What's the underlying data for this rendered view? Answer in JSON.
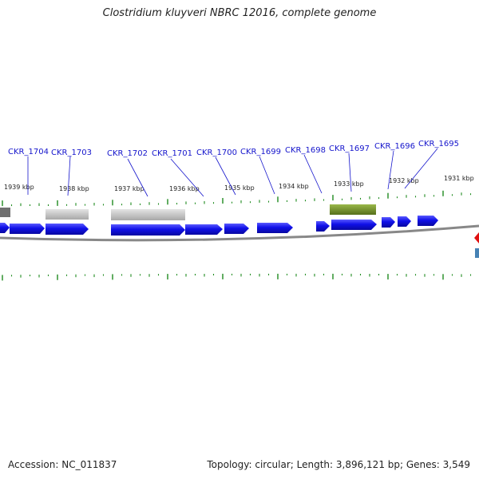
{
  "header": {
    "title": "Clostridium kluyveri NBRC 12016, complete genome"
  },
  "footer": {
    "accession": "Accession: NC_011837",
    "stats": "Topology: circular; Length: 3,896,121 bp; Genes: 3,549"
  },
  "kbp_labels": [
    "1939 kbp",
    "1938 kbp",
    "1937 kbp",
    "1936 kbp",
    "1935 kbp",
    "1934 kbp",
    "1933 kbp",
    "1932 kbp",
    "1931 kbp"
  ],
  "gene_labels": [
    "CKR_1704",
    "CKR_1703",
    "CKR_1702",
    "CKR_1701",
    "CKR_1700",
    "CKR_1699",
    "CKR_1698",
    "CKR_1697",
    "CKR_1696",
    "CKR_1695"
  ],
  "colors": {
    "gene_forward": "#1010e8",
    "label_blue": "#1515cc",
    "tick_green": "#1f8a1f",
    "olive_feature": "#6b8e23",
    "gray_feature": "#bdbdbd",
    "dark_gray_feature": "#707070",
    "backbone": "#888888",
    "red_marker": "#e01010",
    "steel_marker": "#4682b4"
  }
}
